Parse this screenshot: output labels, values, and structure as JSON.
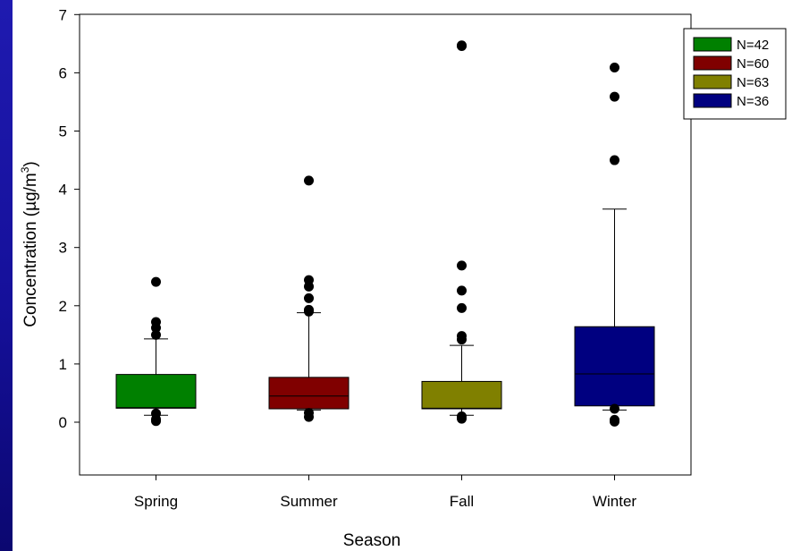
{
  "chart_data": {
    "type": "box",
    "title": "",
    "xlabel": "Season",
    "ylabel": {
      "main": "Concentration (µg/m",
      "superscript": "3",
      "close": ")"
    },
    "ylim": [
      -0.9,
      7
    ],
    "yticks": [
      "0",
      "1",
      "2",
      "3",
      "4",
      "5",
      "6",
      "7"
    ],
    "grid": false,
    "legend_position": "top-right, outside plot",
    "categories": [
      "Spring",
      "Summer",
      "Fall",
      "Winter"
    ],
    "series": [
      {
        "name": "N=42",
        "color": "#008000",
        "whisker_low": 0.12,
        "q1": 0.24,
        "median": 0.25,
        "q3": 0.82,
        "whisker_high": 1.43,
        "outliers": [
          0.02,
          0.05,
          0.15,
          1.5,
          1.62,
          1.72,
          2.41
        ]
      },
      {
        "name": "N=60",
        "color": "#800000",
        "whisker_low": 0.21,
        "q1": 0.23,
        "median": 0.45,
        "q3": 0.77,
        "whisker_high": 1.88,
        "outliers": [
          0.09,
          0.16,
          1.9,
          1.93,
          2.13,
          2.33,
          2.44,
          4.15
        ]
      },
      {
        "name": "N=63",
        "color": "#808000",
        "whisker_low": 0.12,
        "q1": 0.23,
        "median": 0.24,
        "q3": 0.7,
        "whisker_high": 1.32,
        "outliers": [
          0.06,
          0.1,
          1.42,
          1.48,
          1.96,
          2.26,
          2.69,
          6.46,
          6.47
        ]
      },
      {
        "name": "N=36",
        "color": "#000080",
        "whisker_low": 0.21,
        "q1": 0.28,
        "median": 0.83,
        "q3": 1.64,
        "whisker_high": 3.66,
        "outliers": [
          0.01,
          0.04,
          0.23,
          4.5,
          5.59,
          6.09
        ]
      }
    ]
  }
}
